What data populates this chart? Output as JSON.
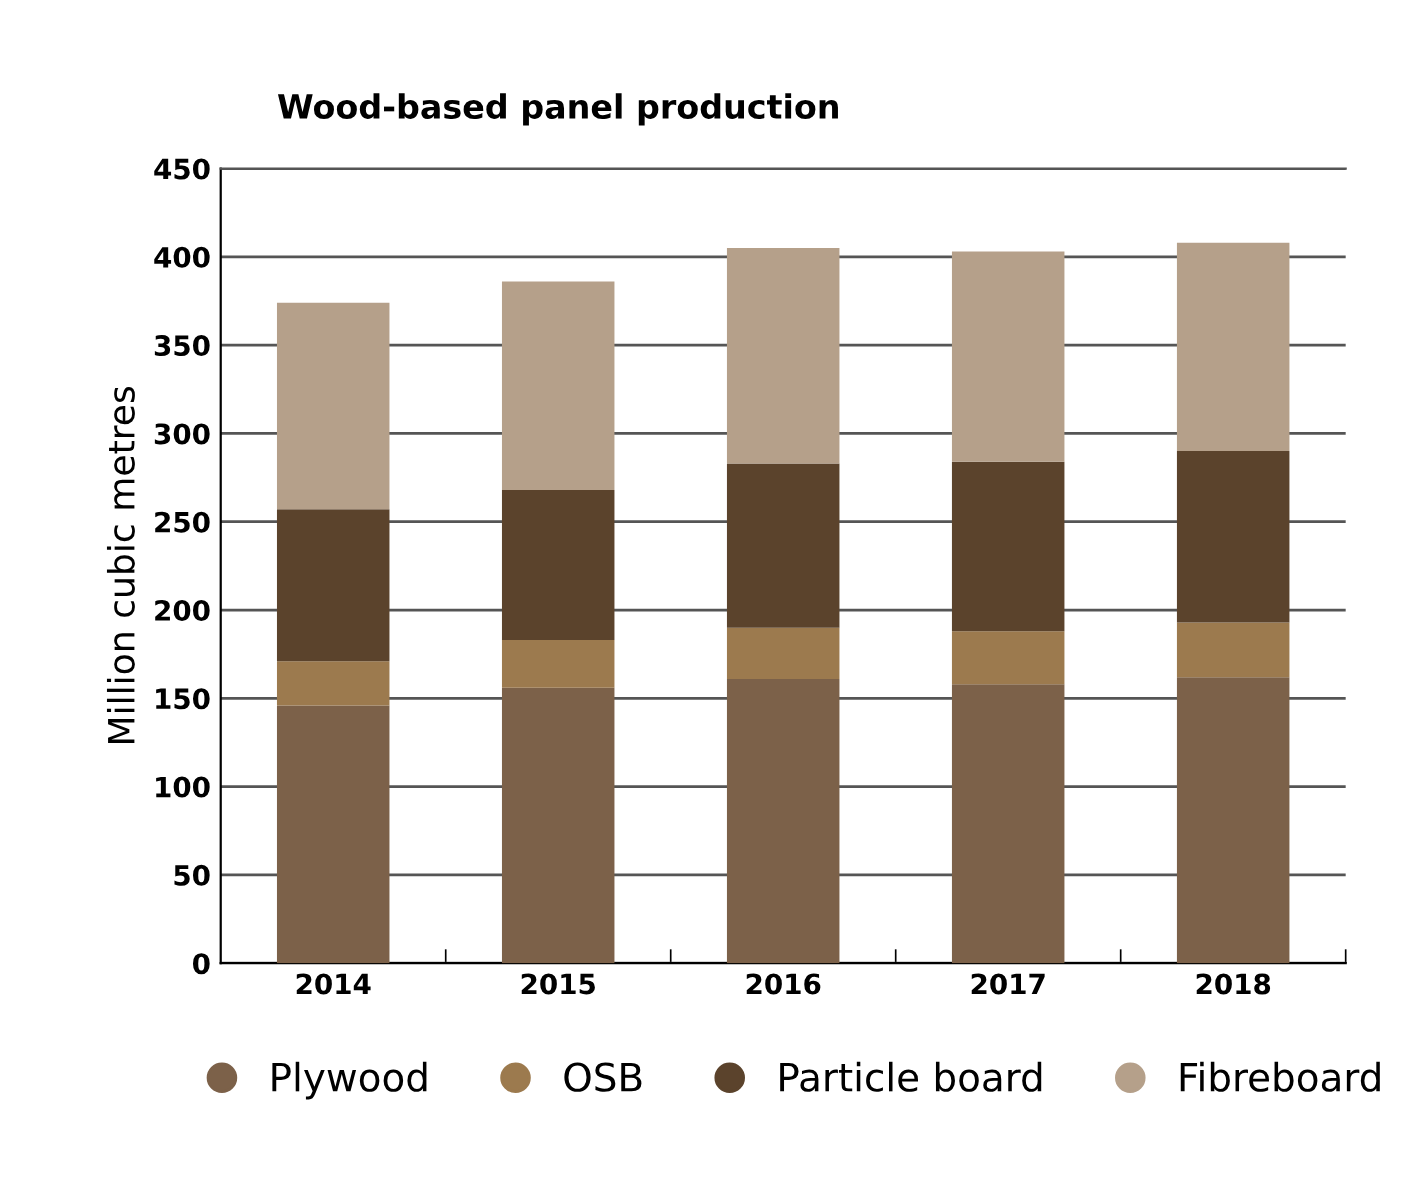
{
  "chart_data": {
    "type": "bar",
    "title": "Wood-based panel production",
    "ylabel": "Million cubic metres",
    "categories": [
      "2014",
      "2015",
      "2016",
      "2017",
      "2018"
    ],
    "stacked": true,
    "series": [
      {
        "name": "Plywood",
        "color": "#7c6149",
        "values": [
          146,
          156,
          161,
          158,
          162
        ]
      },
      {
        "name": "OSB",
        "color": "#9c7a4e",
        "values": [
          25,
          27,
          29,
          30,
          31
        ]
      },
      {
        "name": "Particle board",
        "color": "#5b432c",
        "values": [
          86,
          85,
          93,
          96,
          97
        ]
      },
      {
        "name": "Fibreboard",
        "color": "#b5a08a",
        "values": [
          117,
          118,
          122,
          119,
          118
        ]
      }
    ],
    "ylim": [
      0,
      450
    ],
    "yticks": [
      0,
      50,
      100,
      150,
      200,
      250,
      300,
      350,
      400,
      450
    ],
    "grid": "y",
    "legend": "bottom"
  }
}
